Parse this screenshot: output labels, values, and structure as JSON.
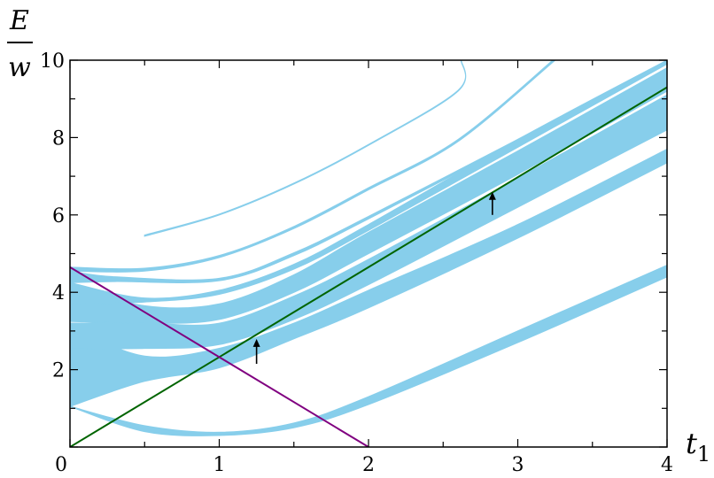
{
  "chart_data": {
    "type": "area",
    "title": "",
    "xlabel": "t",
    "xlabel_sub": "1",
    "ylabel_num": "E",
    "ylabel_den": "w",
    "xlim": [
      0,
      4
    ],
    "ylim": [
      0,
      10
    ],
    "xticks": [
      0,
      1,
      2,
      3,
      4
    ],
    "yticks": [
      2,
      4,
      6,
      8,
      10
    ],
    "x_tick_labels": [
      "0",
      "1",
      "2",
      "3",
      "4"
    ],
    "y_tick_labels": [
      "2",
      "4",
      "6",
      "8",
      "10"
    ],
    "grid": false,
    "band_color": "#87CEEB",
    "bands": [
      {
        "lower": [
          [
            0,
            1.05
          ],
          [
            0.5,
            0.4
          ],
          [
            1,
            0.3
          ],
          [
            1.5,
            0.5
          ],
          [
            2,
            1.1
          ],
          [
            3,
            2.7
          ],
          [
            4,
            4.4
          ]
        ],
        "upper": [
          [
            0,
            1.05
          ],
          [
            0.5,
            0.55
          ],
          [
            1,
            0.38
          ],
          [
            1.5,
            0.62
          ],
          [
            2,
            1.3
          ],
          [
            3,
            3.0
          ],
          [
            4,
            4.7
          ]
        ]
      },
      {
        "lower": [
          [
            0,
            1.05
          ],
          [
            0.5,
            1.7
          ],
          [
            1,
            2.05
          ],
          [
            1.5,
            2.8
          ],
          [
            2,
            3.6
          ],
          [
            3,
            5.4
          ],
          [
            4,
            7.35
          ]
        ],
        "upper": [
          [
            0,
            3.1
          ],
          [
            0.5,
            2.35
          ],
          [
            1,
            2.55
          ],
          [
            1.5,
            3.2
          ],
          [
            2,
            4.05
          ],
          [
            3,
            5.75
          ],
          [
            4,
            7.7
          ]
        ]
      },
      {
        "lower": [
          [
            0,
            2.55
          ],
          [
            0.5,
            2.55
          ],
          [
            1,
            2.65
          ],
          [
            1.5,
            3.3
          ],
          [
            2,
            4.2
          ],
          [
            3,
            6.2
          ],
          [
            4,
            8.2
          ]
        ],
        "upper": [
          [
            0,
            3.2
          ],
          [
            0.5,
            3.2
          ],
          [
            1,
            3.2
          ],
          [
            1.5,
            3.9
          ],
          [
            2,
            4.85
          ],
          [
            3,
            6.95
          ],
          [
            4,
            9.1
          ]
        ]
      },
      {
        "lower": [
          [
            0,
            3.25
          ],
          [
            0.5,
            3.2
          ],
          [
            1,
            3.3
          ],
          [
            1.5,
            4.0
          ],
          [
            2,
            5.0
          ],
          [
            3,
            7.05
          ],
          [
            4,
            9.2
          ]
        ],
        "upper": [
          [
            0,
            4.2
          ],
          [
            0.5,
            3.65
          ],
          [
            1,
            3.7
          ],
          [
            1.5,
            4.45
          ],
          [
            2,
            5.55
          ],
          [
            3,
            7.65
          ],
          [
            4,
            9.8
          ]
        ]
      },
      {
        "lower": [
          [
            0,
            3.7
          ],
          [
            0.5,
            3.75
          ],
          [
            1,
            3.95
          ],
          [
            1.5,
            4.6
          ],
          [
            2,
            5.6
          ],
          [
            3,
            7.75
          ],
          [
            4,
            9.9
          ]
        ],
        "upper": [
          [
            0,
            4.25
          ],
          [
            0.5,
            3.85
          ],
          [
            1,
            4.05
          ],
          [
            1.5,
            4.72
          ],
          [
            2,
            5.75
          ],
          [
            3,
            7.95
          ],
          [
            4,
            10.0
          ]
        ]
      },
      {
        "lower": [
          [
            0,
            4.25
          ],
          [
            0.3,
            4.28
          ],
          [
            1,
            4.3
          ],
          [
            1.5,
            4.95
          ],
          [
            2,
            5.9
          ],
          [
            3,
            7.9
          ],
          [
            3.3,
            8.5
          ]
        ],
        "upper": [
          [
            0,
            4.55
          ],
          [
            0.3,
            4.4
          ],
          [
            1,
            4.36
          ],
          [
            1.5,
            5.02
          ],
          [
            2,
            5.96
          ],
          [
            3,
            7.95
          ],
          [
            3.3,
            8.55
          ]
        ]
      },
      {
        "lower": [
          [
            0,
            4.55
          ],
          [
            0.5,
            4.55
          ],
          [
            1,
            4.9
          ],
          [
            1.5,
            5.65
          ],
          [
            2,
            6.65
          ],
          [
            2.6,
            7.9
          ],
          [
            3.25,
            10.0
          ]
        ],
        "upper": [
          [
            0,
            4.65
          ],
          [
            0.5,
            4.62
          ],
          [
            1,
            4.95
          ],
          [
            1.5,
            5.7
          ],
          [
            2,
            6.7
          ],
          [
            2.6,
            7.95
          ],
          [
            3.25,
            10.05
          ]
        ]
      },
      {
        "lower": [
          [
            0.5,
            5.45
          ],
          [
            1,
            6.0
          ],
          [
            1.5,
            6.8
          ],
          [
            2,
            7.8
          ],
          [
            2.6,
            9.2
          ],
          [
            2.62,
            10.0
          ]
        ],
        "upper": [
          [
            0.5,
            5.48
          ],
          [
            1,
            6.02
          ],
          [
            1.5,
            6.82
          ],
          [
            2,
            7.82
          ],
          [
            2.6,
            9.22
          ],
          [
            2.62,
            10.02
          ]
        ]
      }
    ],
    "lines": [
      {
        "color": "#006400",
        "points": [
          [
            0,
            0
          ],
          [
            4,
            9.3
          ]
        ]
      },
      {
        "color": "#800080",
        "points": [
          [
            0,
            4.65
          ],
          [
            2,
            0
          ]
        ]
      }
    ],
    "arrows": [
      {
        "x": 1.25,
        "y_from": 2.15,
        "y_to": 2.75
      },
      {
        "x": 2.83,
        "y_from": 6.0,
        "y_to": 6.55
      }
    ]
  }
}
